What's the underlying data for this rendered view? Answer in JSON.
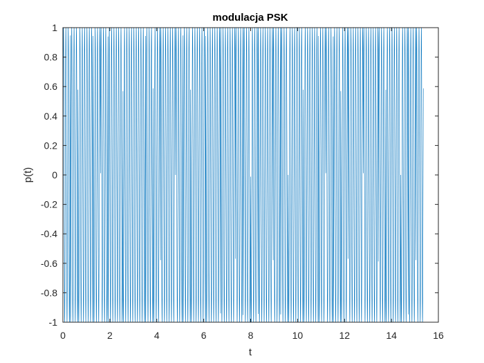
{
  "chart_data": {
    "type": "line",
    "title": "modulacja PSK",
    "xlabel": "t",
    "ylabel": "p(t)",
    "xlim": [
      0,
      16
    ],
    "ylim": [
      -1,
      1
    ],
    "x_ticks": [
      0,
      2,
      4,
      6,
      8,
      10,
      12,
      14,
      16
    ],
    "x_tick_labels": [
      "0",
      "2",
      "4",
      "6",
      "8",
      "10",
      "12",
      "14",
      "16"
    ],
    "y_ticks": [
      -1,
      -0.8,
      -0.6,
      -0.4,
      -0.2,
      0,
      0.2,
      0.4,
      0.6,
      0.8,
      1
    ],
    "y_tick_labels": [
      "-1",
      "-0.8",
      "-0.6",
      "-0.4",
      "-0.2",
      "0",
      "0.2",
      "0.4",
      "0.6",
      "0.8",
      "1"
    ],
    "grid": false,
    "legend": "none",
    "series": [
      {
        "function": "sin(2*pi*f*t + phase)",
        "amplitude": 1,
        "carrier_frequency": 10,
        "t_start": 0,
        "t_end": 15.36,
        "bit_duration": 0.32,
        "phase_per_bit_rad": [
          0,
          3.1416,
          0,
          0,
          3.1416,
          0,
          3.1416,
          3.1416,
          0,
          0,
          0,
          3.1416,
          0,
          3.1416,
          3.1416,
          0,
          3.1416,
          0,
          0,
          3.1416,
          3.1416,
          0,
          0,
          3.1416,
          0,
          3.1416,
          0,
          0,
          3.1416,
          0,
          3.1416,
          3.1416,
          0,
          0,
          3.1416,
          0,
          3.1416,
          0,
          3.1416,
          3.1416,
          0,
          0,
          3.1416,
          0,
          0,
          3.1416,
          0,
          3.1416
        ],
        "color": "#0072BD"
      }
    ]
  }
}
